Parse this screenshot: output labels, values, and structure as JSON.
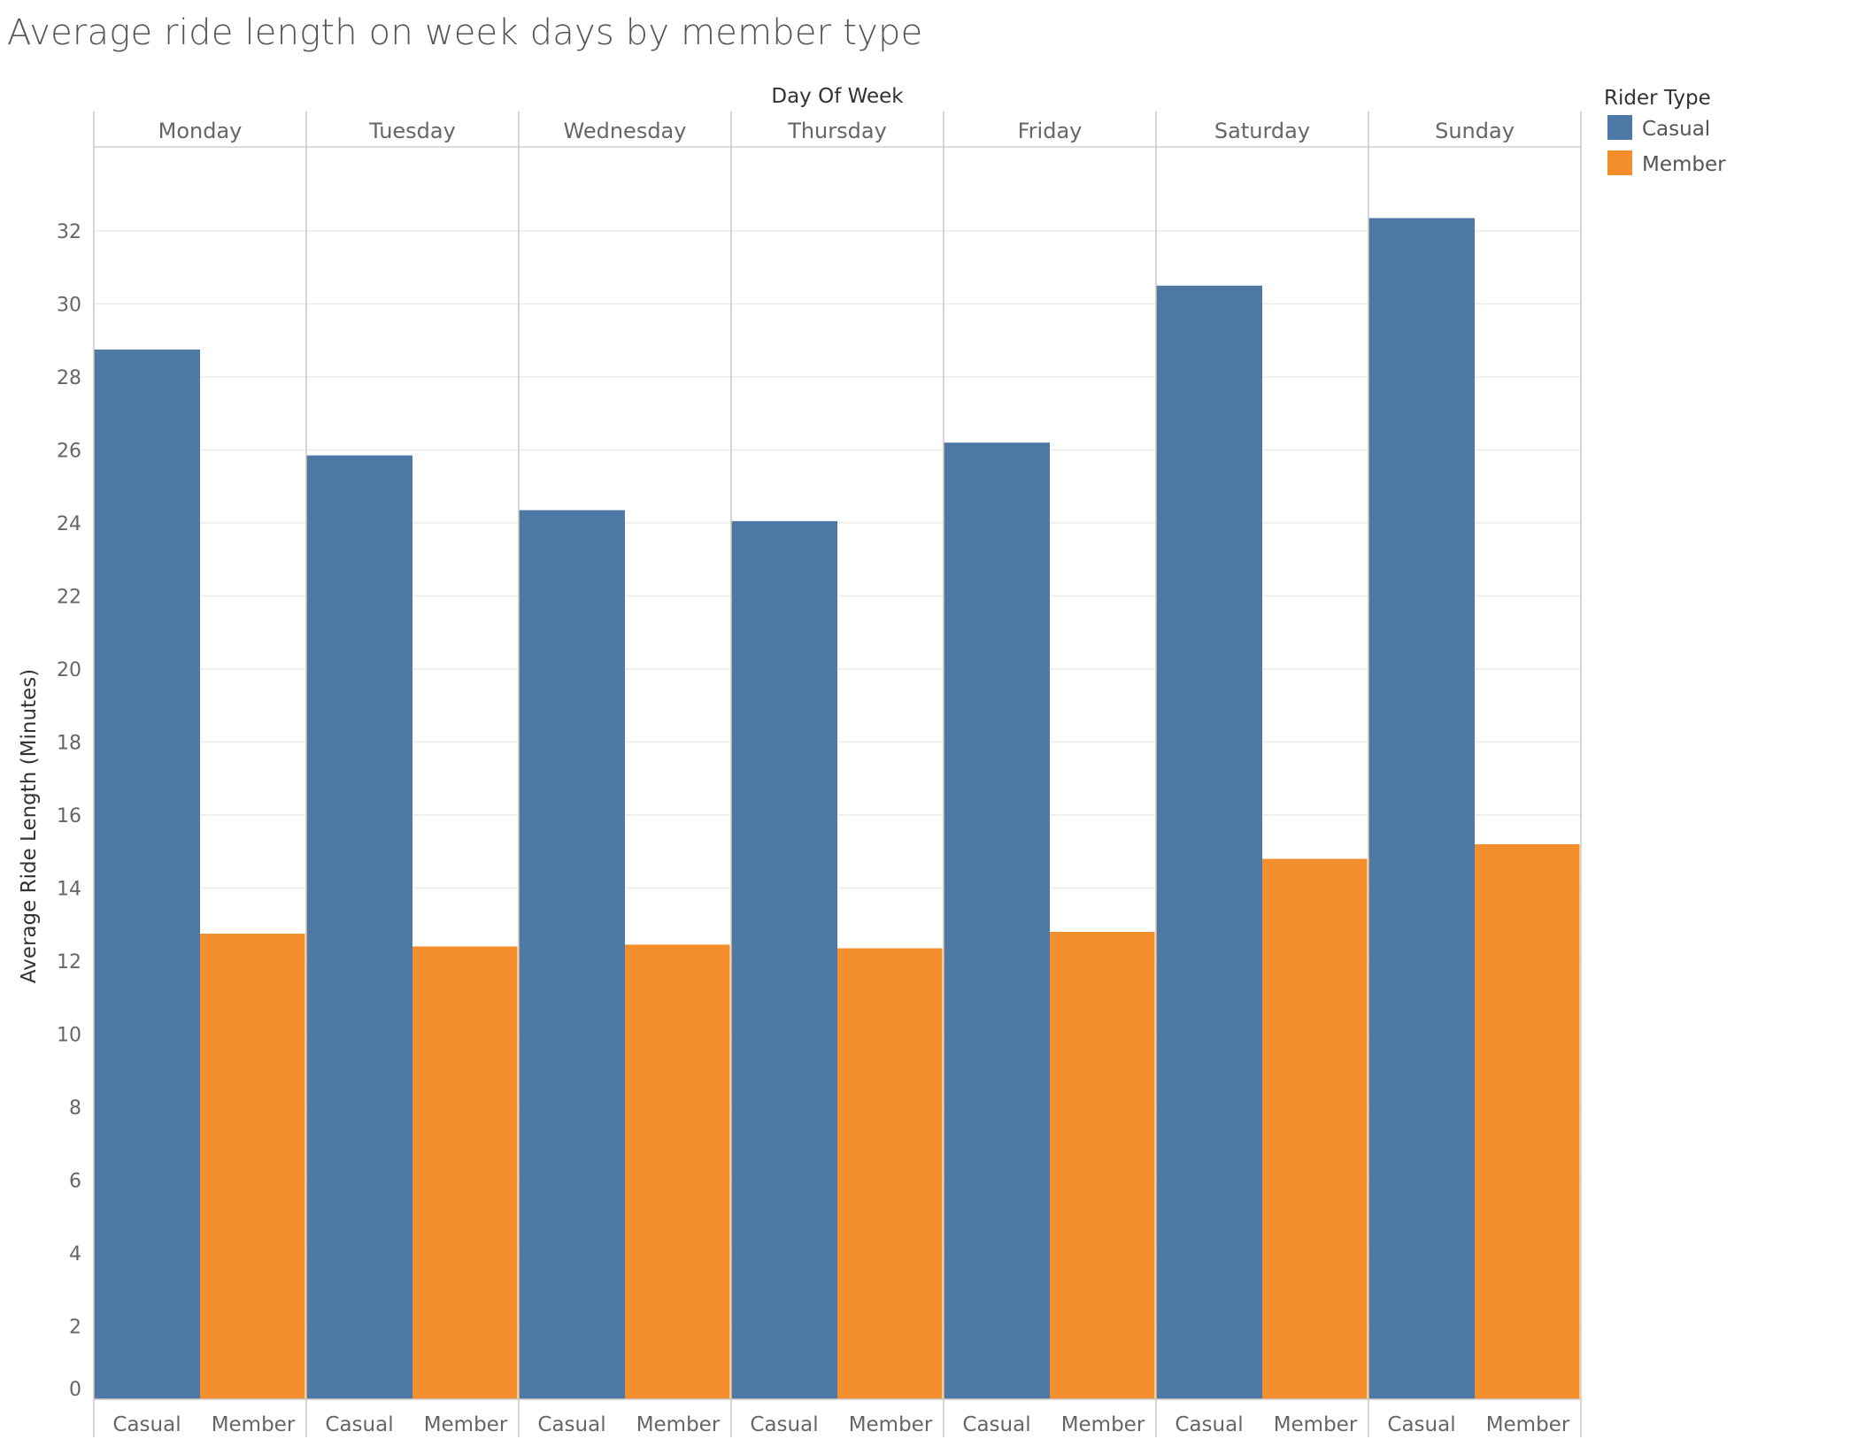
{
  "title": "Average ride length on week days by member type",
  "chart_data": {
    "type": "bar",
    "column_header": "Day Of Week",
    "ylabel": "Average Ride Length (Minutes)",
    "ylim": [
      0,
      34.3
    ],
    "yticks": [
      0,
      2,
      4,
      6,
      8,
      10,
      12,
      14,
      16,
      18,
      20,
      22,
      24,
      26,
      28,
      30,
      32
    ],
    "grid": true,
    "legend": {
      "title": "Rider Type",
      "placement": "top-right",
      "entries": [
        {
          "label": "Casual",
          "color": "#4e79a7"
        },
        {
          "label": "Member",
          "color": "#f28e2b"
        }
      ]
    },
    "categories": [
      "Monday",
      "Tuesday",
      "Wednesday",
      "Thursday",
      "Friday",
      "Saturday",
      "Sunday"
    ],
    "sub_categories": [
      "Casual",
      "Member"
    ],
    "series": [
      {
        "name": "Casual",
        "color": "#4e79a7",
        "values": [
          28.75,
          25.85,
          24.35,
          24.05,
          26.2,
          30.5,
          32.35
        ]
      },
      {
        "name": "Member",
        "color": "#f28e2b",
        "values": [
          12.75,
          12.4,
          12.45,
          12.35,
          12.8,
          14.8,
          15.2
        ]
      }
    ]
  }
}
